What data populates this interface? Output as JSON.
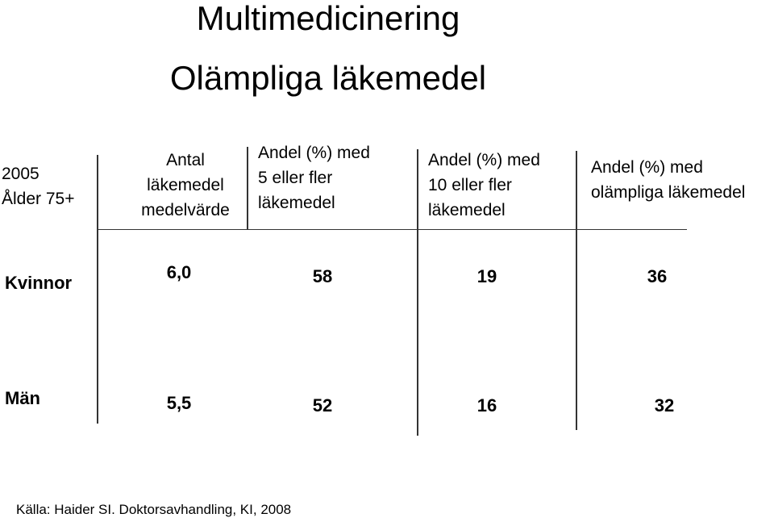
{
  "title": {
    "line1": "Multimedicinering",
    "line2": "Olämpliga läkemedel"
  },
  "table": {
    "corner": [
      "2005",
      "Ålder 75+"
    ],
    "columns": [
      [
        "Antal",
        "läkemedel",
        "medelvärde"
      ],
      [
        "Andel (%) med",
        "5 eller fler",
        "läkemedel"
      ],
      [
        "Andel (%) med",
        "10 eller fler",
        "läkemedel"
      ],
      [
        "Andel (%) med",
        "olämpliga läkemedel"
      ]
    ],
    "rows": [
      {
        "label": "Kvinnor",
        "values": [
          "6,0",
          "58",
          "19",
          "36"
        ]
      },
      {
        "label": "Män",
        "values": [
          "5,5",
          "52",
          "16",
          "32"
        ]
      }
    ]
  },
  "source": "Källa: Haider SI. Doktorsavhandling, KI, 2008"
}
